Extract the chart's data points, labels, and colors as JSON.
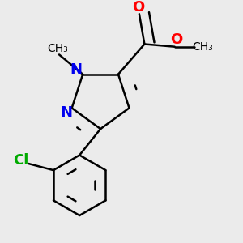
{
  "background_color": "#ebebeb",
  "bond_color": "#000000",
  "bond_width": 1.8,
  "atom_colors": {
    "N": "#0000ee",
    "O": "#ff0000",
    "Cl": "#00aa00",
    "C": "#000000"
  },
  "font_size_atoms": 13,
  "font_size_small": 10
}
